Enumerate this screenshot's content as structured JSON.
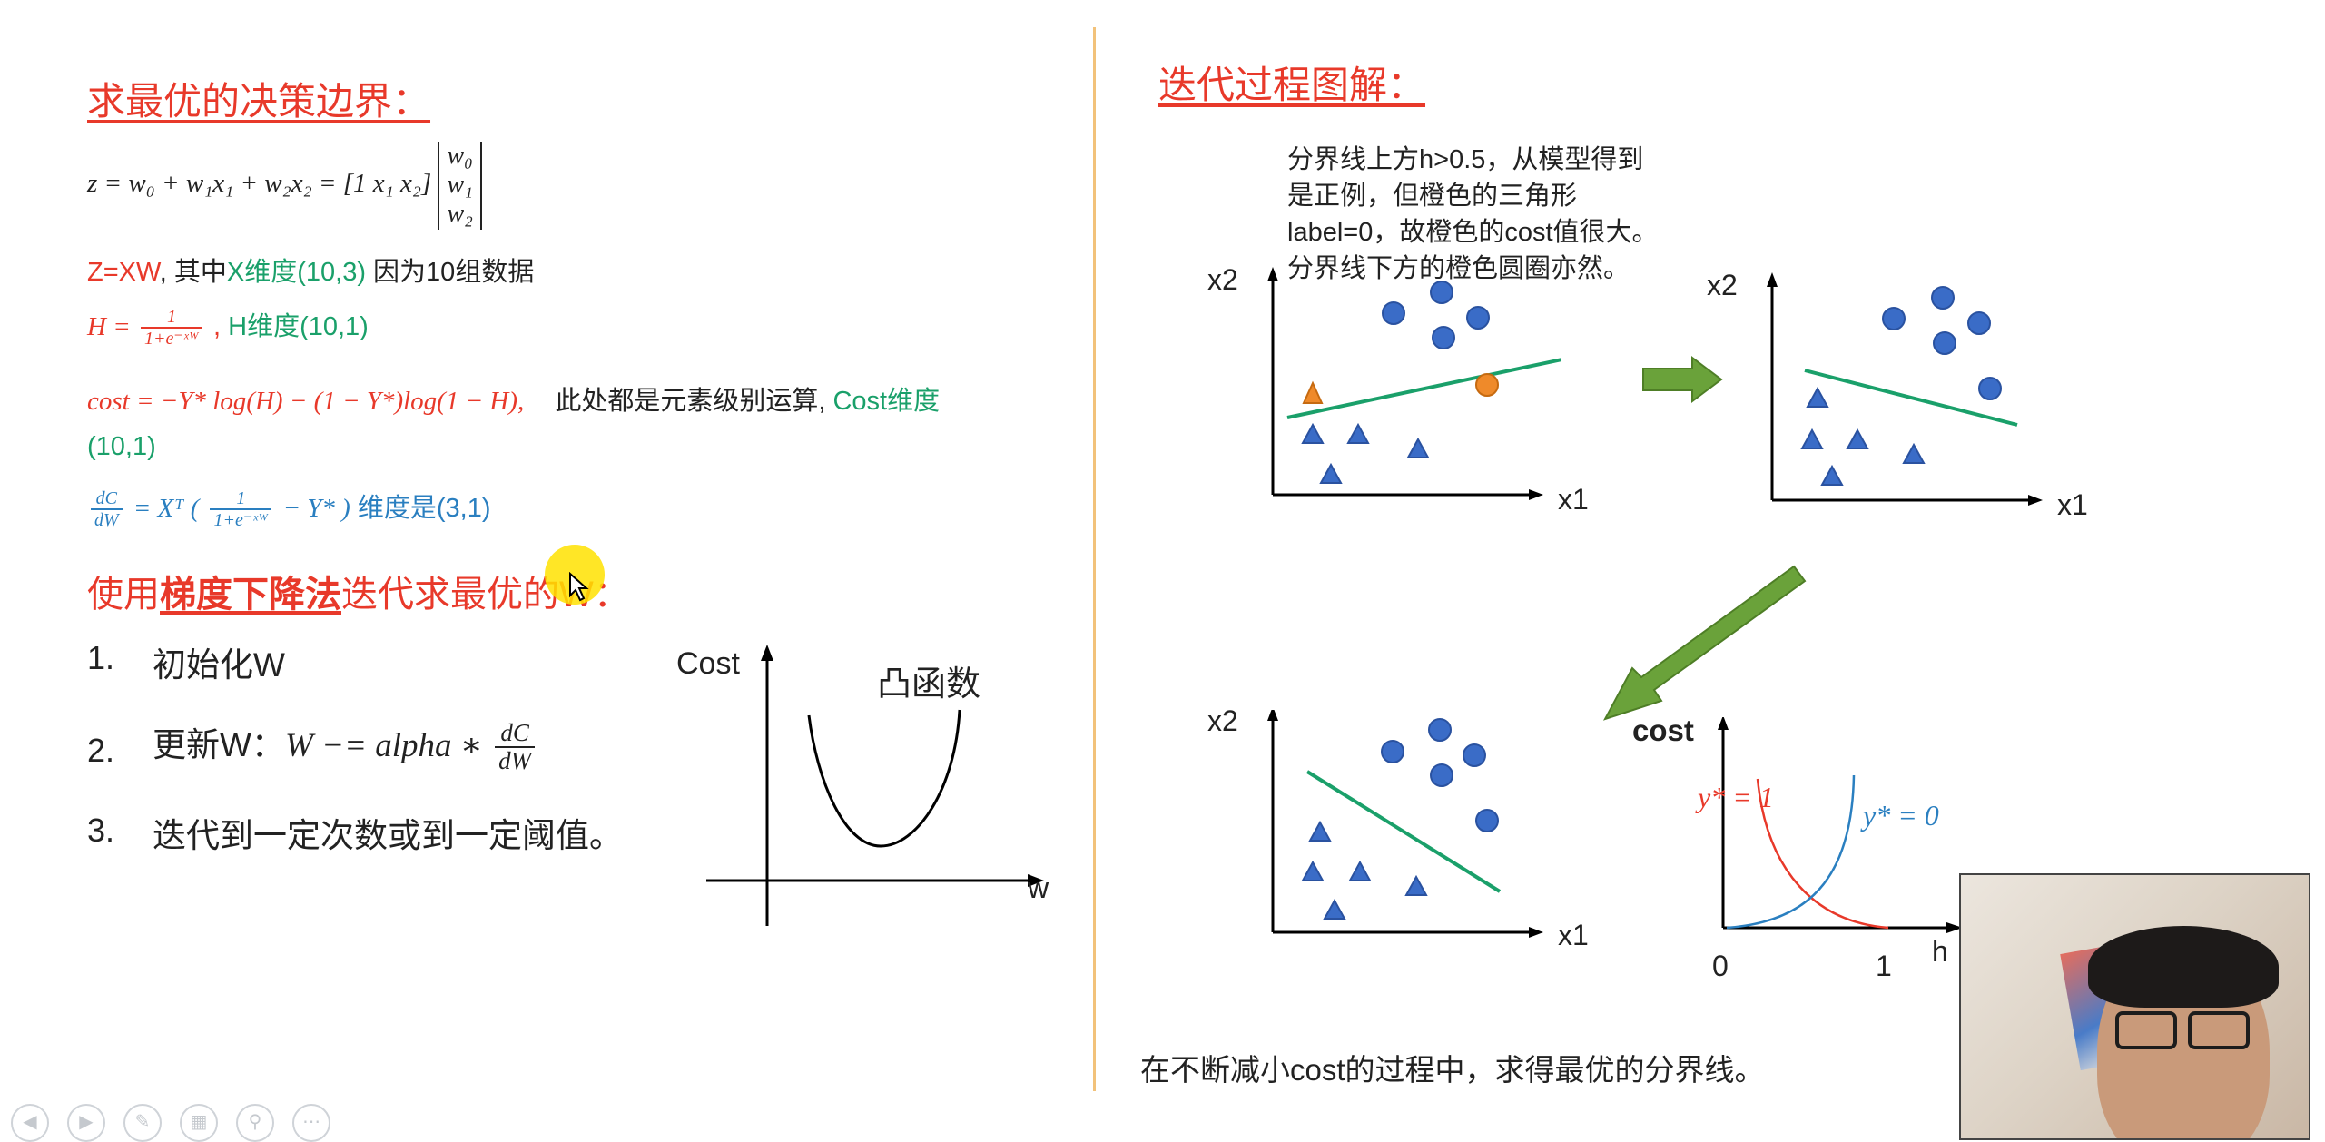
{
  "left": {
    "title": "求最优的决策边界：",
    "eq_z": {
      "lhs": "z = w₀ + w₁x₁ + w₂x₂ = [1    x₁    x₂]",
      "matrix": [
        "w₀",
        "w₁",
        "w₂"
      ]
    },
    "line_zxw": {
      "part1": "Z=XW",
      "part2": ", 其中",
      "part3": "X维度(10,3)",
      "part4": " 因为10组数据"
    },
    "line_h": {
      "lhs": "H = ",
      "num": "1",
      "den": "1+e⁻ˣᵂ",
      "sep": ",",
      "dim": "H维度(10,1)"
    },
    "line_cost": {
      "formula": "cost = −Y* log(H) − (1 − Y*)log(1 − H),",
      "note": "此处都是元素级别运算,",
      "dim": "Cost维度",
      "dim2": "(10,1)"
    },
    "line_grad": {
      "num": "dC",
      "den": "dW",
      "eq": "= Xᵀ (",
      "inner_num": "1",
      "inner_den": "1+e⁻ˣᵂ",
      "tail": " − Y* )",
      "dim": "维度是(3,1)"
    },
    "gd_title": {
      "pre": "使用",
      "emph": "梯度下降法",
      "post": "迭代求最优的W："
    },
    "steps": [
      {
        "num": "1.",
        "text": "初始化W"
      },
      {
        "num": "2.",
        "text": "更新W：",
        "formula": "W −= alpha ∗ ",
        "fnum": "dC",
        "fden": "dW"
      },
      {
        "num": "3.",
        "text": "迭代到一定次数或到一定阈值。"
      }
    ],
    "convex": {
      "ylabel": "Cost",
      "xlabel": "w",
      "label": "凸函数"
    }
  },
  "right": {
    "title": "迭代过程图解：",
    "annotation": [
      "分界线上方h>0.5，从模型得到",
      "是正例，但橙色的三角形",
      "label=0，故橙色的cost值很大。",
      "分界线下方的橙色圆圈亦然。"
    ],
    "axis_x": "x1",
    "axis_y": "x2",
    "cost_plot": {
      "ylabel": "cost",
      "xlabel": "h",
      "x0": "0",
      "x1": "1",
      "y1label": "y* = 1",
      "y0label": "y* = 0"
    },
    "footer": "在不断减小cost的过程中，求得最优的分界线。"
  },
  "controls": [
    "prev",
    "next",
    "pen",
    "slides",
    "zoom",
    "more"
  ],
  "colors": {
    "red": "#e8392a",
    "green": "#1aa06a",
    "blue": "#2a7fc0",
    "point": "#3a6cc7",
    "orange": "#ef8a2a",
    "arrow": "#6aa23a",
    "divider": "#f2c27a"
  }
}
